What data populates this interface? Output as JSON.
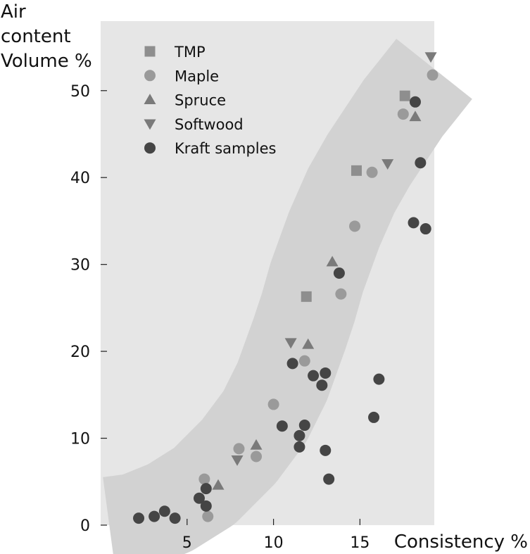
{
  "chart_data": {
    "type": "scatter",
    "title": "",
    "xlabel": "Consistency %",
    "ylabel_lines": [
      "Air",
      "content",
      "Volume %"
    ],
    "xlim": [
      0,
      19.3
    ],
    "ylim": [
      0,
      58
    ],
    "x_ticks": [
      5,
      10,
      15
    ],
    "y_ticks": [
      0,
      10,
      20,
      30,
      40,
      50
    ],
    "grid": false,
    "legend_position": "top-left",
    "band": {
      "description": "shaded trend band",
      "color": "#d2d2d2",
      "center": [
        [
          0.5,
          0
        ],
        [
          2,
          0.4
        ],
        [
          4,
          2
        ],
        [
          6,
          4.5
        ],
        [
          8,
          8.5
        ],
        [
          9.5,
          12.5
        ],
        [
          10.5,
          16.5
        ],
        [
          11.5,
          22
        ],
        [
          12,
          25
        ],
        [
          12.5,
          28.5
        ],
        [
          13.5,
          34
        ],
        [
          14.5,
          38.5
        ],
        [
          15.5,
          42
        ],
        [
          16.5,
          45
        ],
        [
          17.5,
          48
        ],
        [
          18.5,
          50.5
        ],
        [
          19.3,
          52.5
        ]
      ],
      "half_width": 2.8
    },
    "series": [
      {
        "name": "TMP",
        "marker": "square",
        "color": "#8e8e8e",
        "points": [
          [
            11.9,
            26.3
          ],
          [
            14.8,
            40.8
          ],
          [
            17.6,
            49.4
          ]
        ]
      },
      {
        "name": "Maple",
        "marker": "circle",
        "color": "#9a9a9a",
        "points": [
          [
            6.2,
            1.0
          ],
          [
            6.0,
            5.3
          ],
          [
            8.0,
            8.8
          ],
          [
            9.0,
            7.9
          ],
          [
            10.0,
            13.9
          ],
          [
            11.8,
            18.9
          ],
          [
            13.9,
            26.6
          ],
          [
            14.7,
            34.4
          ],
          [
            15.7,
            40.6
          ],
          [
            17.5,
            47.3
          ],
          [
            19.2,
            51.8
          ]
        ]
      },
      {
        "name": "Spruce",
        "marker": "triangle-up",
        "color": "#7a7a7a",
        "points": [
          [
            6.8,
            4.6
          ],
          [
            9.0,
            9.2
          ],
          [
            12.0,
            20.8
          ],
          [
            13.4,
            30.3
          ],
          [
            18.2,
            47.0
          ]
        ]
      },
      {
        "name": "Softwood",
        "marker": "triangle-down",
        "color": "#7a7a7a",
        "points": [
          [
            7.9,
            7.5
          ],
          [
            11.0,
            21.0
          ],
          [
            16.6,
            41.6
          ],
          [
            19.1,
            53.9
          ]
        ]
      },
      {
        "name": "Kraft samples",
        "marker": "circle",
        "color": "#454545",
        "points": [
          [
            2.2,
            0.8
          ],
          [
            3.1,
            1.0
          ],
          [
            3.7,
            1.6
          ],
          [
            4.3,
            0.8
          ],
          [
            5.7,
            3.1
          ],
          [
            6.1,
            4.2
          ],
          [
            6.1,
            2.2
          ],
          [
            10.5,
            11.4
          ],
          [
            11.1,
            18.6
          ],
          [
            11.5,
            10.3
          ],
          [
            11.5,
            9.0
          ],
          [
            11.8,
            11.5
          ],
          [
            12.3,
            17.2
          ],
          [
            12.8,
            16.1
          ],
          [
            13.0,
            17.5
          ],
          [
            13.0,
            8.6
          ],
          [
            13.2,
            5.3
          ],
          [
            13.8,
            29.0
          ],
          [
            15.8,
            12.4
          ],
          [
            16.1,
            16.8
          ],
          [
            18.1,
            34.8
          ],
          [
            18.2,
            48.7
          ],
          [
            18.5,
            41.7
          ],
          [
            18.8,
            34.1
          ]
        ]
      }
    ]
  }
}
